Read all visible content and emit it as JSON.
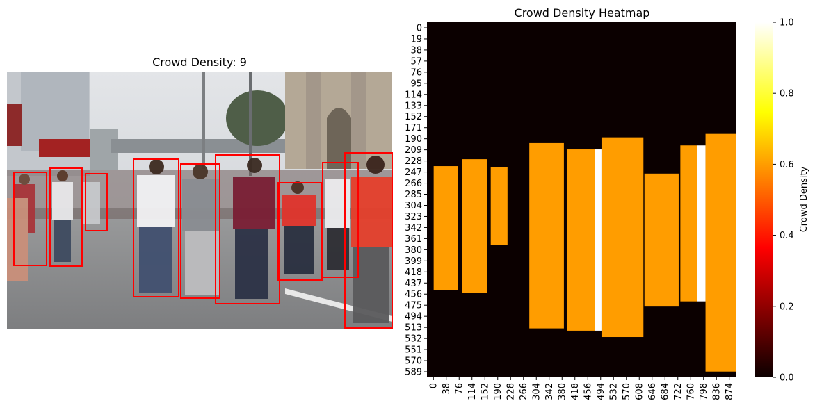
{
  "left_panel": {
    "title": "Crowd Density: 9",
    "photo": {
      "description_icon": "crowd-street-photo",
      "colors": {
        "sky": "#d4d7da",
        "road": "#8e8f90",
        "building": "#b9aea0",
        "box": "#ff0000"
      }
    },
    "detections": [
      {
        "x1": 10,
        "y1": 145,
        "x2": 57,
        "y2": 279
      },
      {
        "x1": 62,
        "y1": 139,
        "x2": 108,
        "y2": 280
      },
      {
        "x1": 113,
        "y1": 147,
        "x2": 144,
        "y2": 229
      },
      {
        "x1": 182,
        "y1": 126,
        "x2": 247,
        "y2": 324
      },
      {
        "x1": 250,
        "y1": 133,
        "x2": 306,
        "y2": 326
      },
      {
        "x1": 300,
        "y1": 120,
        "x2": 392,
        "y2": 334
      },
      {
        "x1": 390,
        "y1": 160,
        "x2": 453,
        "y2": 300
      },
      {
        "x1": 454,
        "y1": 131,
        "x2": 505,
        "y2": 296
      },
      {
        "x1": 486,
        "y1": 117,
        "x2": 554,
        "y2": 369
      }
    ]
  },
  "chart_data": {
    "type": "heatmap",
    "title": "Crowd Density Heatmap",
    "xlabel": "",
    "ylabel": "",
    "x_ticks": [
      0,
      38,
      76,
      114,
      152,
      190,
      228,
      266,
      304,
      342,
      380,
      418,
      456,
      494,
      532,
      570,
      608,
      646,
      684,
      722,
      760,
      798,
      836,
      874
    ],
    "y_ticks": [
      0,
      19,
      38,
      57,
      76,
      95,
      114,
      133,
      152,
      171,
      190,
      209,
      228,
      247,
      266,
      285,
      304,
      323,
      342,
      361,
      380,
      399,
      418,
      437,
      456,
      475,
      494,
      513,
      532,
      551,
      570,
      589
    ],
    "xlim": [
      0,
      920
    ],
    "ylim": [
      0,
      617
    ],
    "colormap": "hot",
    "background_value": 0.0,
    "regions": [
      {
        "x1": 20,
        "y1": 250,
        "x2": 92,
        "y2": 466,
        "value": 0.6
      },
      {
        "x1": 105,
        "y1": 238,
        "x2": 179,
        "y2": 470,
        "value": 0.6
      },
      {
        "x1": 190,
        "y1": 252,
        "x2": 240,
        "y2": 387,
        "value": 0.6
      },
      {
        "x1": 305,
        "y1": 210,
        "x2": 408,
        "y2": 532,
        "value": 0.6
      },
      {
        "x1": 418,
        "y1": 221,
        "x2": 500,
        "y2": 536,
        "value": 0.6
      },
      {
        "x1": 500,
        "y1": 221,
        "x2": 520,
        "y2": 536,
        "value": 1.0
      },
      {
        "x1": 520,
        "y1": 200,
        "x2": 645,
        "y2": 547,
        "value": 0.6
      },
      {
        "x1": 648,
        "y1": 263,
        "x2": 750,
        "y2": 494,
        "value": 0.6
      },
      {
        "x1": 755,
        "y1": 214,
        "x2": 805,
        "y2": 485,
        "value": 0.6
      },
      {
        "x1": 805,
        "y1": 214,
        "x2": 830,
        "y2": 485,
        "value": 1.0
      },
      {
        "x1": 830,
        "y1": 194,
        "x2": 920,
        "y2": 607,
        "value": 0.6
      }
    ],
    "colorbar": {
      "label": "Crowd Density",
      "range": [
        0.0,
        1.0
      ],
      "ticks": [
        "0.0",
        "0.2",
        "0.4",
        "0.6",
        "0.8",
        "1.0"
      ]
    },
    "grid": false
  }
}
